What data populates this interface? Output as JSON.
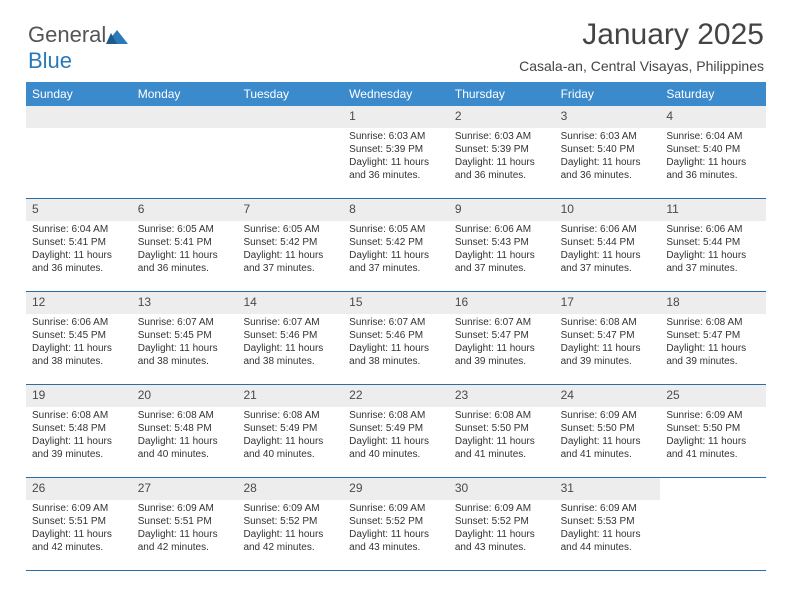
{
  "brand": {
    "text_general": "General",
    "text_blue": "Blue",
    "blue": "#2a79b8",
    "gray": "#555555"
  },
  "title": "January 2025",
  "subtitle": "Casala-an, Central Visayas, Philippines",
  "colors": {
    "header_bg": "#3b8acb",
    "header_text": "#ffffff",
    "daynum_bg": "#ededed",
    "daynum_text": "#4a4a4a",
    "week_border": "#2a6ea8",
    "body_text": "#333333",
    "background": "#ffffff"
  },
  "day_headers": [
    "Sunday",
    "Monday",
    "Tuesday",
    "Wednesday",
    "Thursday",
    "Friday",
    "Saturday"
  ],
  "weeks": [
    [
      {
        "day": "",
        "sunrise": "",
        "sunset": "",
        "daylight": ""
      },
      {
        "day": "",
        "sunrise": "",
        "sunset": "",
        "daylight": ""
      },
      {
        "day": "",
        "sunrise": "",
        "sunset": "",
        "daylight": ""
      },
      {
        "day": "1",
        "sunrise": "Sunrise: 6:03 AM",
        "sunset": "Sunset: 5:39 PM",
        "daylight": "Daylight: 11 hours and 36 minutes."
      },
      {
        "day": "2",
        "sunrise": "Sunrise: 6:03 AM",
        "sunset": "Sunset: 5:39 PM",
        "daylight": "Daylight: 11 hours and 36 minutes."
      },
      {
        "day": "3",
        "sunrise": "Sunrise: 6:03 AM",
        "sunset": "Sunset: 5:40 PM",
        "daylight": "Daylight: 11 hours and 36 minutes."
      },
      {
        "day": "4",
        "sunrise": "Sunrise: 6:04 AM",
        "sunset": "Sunset: 5:40 PM",
        "daylight": "Daylight: 11 hours and 36 minutes."
      }
    ],
    [
      {
        "day": "5",
        "sunrise": "Sunrise: 6:04 AM",
        "sunset": "Sunset: 5:41 PM",
        "daylight": "Daylight: 11 hours and 36 minutes."
      },
      {
        "day": "6",
        "sunrise": "Sunrise: 6:05 AM",
        "sunset": "Sunset: 5:41 PM",
        "daylight": "Daylight: 11 hours and 36 minutes."
      },
      {
        "day": "7",
        "sunrise": "Sunrise: 6:05 AM",
        "sunset": "Sunset: 5:42 PM",
        "daylight": "Daylight: 11 hours and 37 minutes."
      },
      {
        "day": "8",
        "sunrise": "Sunrise: 6:05 AM",
        "sunset": "Sunset: 5:42 PM",
        "daylight": "Daylight: 11 hours and 37 minutes."
      },
      {
        "day": "9",
        "sunrise": "Sunrise: 6:06 AM",
        "sunset": "Sunset: 5:43 PM",
        "daylight": "Daylight: 11 hours and 37 minutes."
      },
      {
        "day": "10",
        "sunrise": "Sunrise: 6:06 AM",
        "sunset": "Sunset: 5:44 PM",
        "daylight": "Daylight: 11 hours and 37 minutes."
      },
      {
        "day": "11",
        "sunrise": "Sunrise: 6:06 AM",
        "sunset": "Sunset: 5:44 PM",
        "daylight": "Daylight: 11 hours and 37 minutes."
      }
    ],
    [
      {
        "day": "12",
        "sunrise": "Sunrise: 6:06 AM",
        "sunset": "Sunset: 5:45 PM",
        "daylight": "Daylight: 11 hours and 38 minutes."
      },
      {
        "day": "13",
        "sunrise": "Sunrise: 6:07 AM",
        "sunset": "Sunset: 5:45 PM",
        "daylight": "Daylight: 11 hours and 38 minutes."
      },
      {
        "day": "14",
        "sunrise": "Sunrise: 6:07 AM",
        "sunset": "Sunset: 5:46 PM",
        "daylight": "Daylight: 11 hours and 38 minutes."
      },
      {
        "day": "15",
        "sunrise": "Sunrise: 6:07 AM",
        "sunset": "Sunset: 5:46 PM",
        "daylight": "Daylight: 11 hours and 38 minutes."
      },
      {
        "day": "16",
        "sunrise": "Sunrise: 6:07 AM",
        "sunset": "Sunset: 5:47 PM",
        "daylight": "Daylight: 11 hours and 39 minutes."
      },
      {
        "day": "17",
        "sunrise": "Sunrise: 6:08 AM",
        "sunset": "Sunset: 5:47 PM",
        "daylight": "Daylight: 11 hours and 39 minutes."
      },
      {
        "day": "18",
        "sunrise": "Sunrise: 6:08 AM",
        "sunset": "Sunset: 5:47 PM",
        "daylight": "Daylight: 11 hours and 39 minutes."
      }
    ],
    [
      {
        "day": "19",
        "sunrise": "Sunrise: 6:08 AM",
        "sunset": "Sunset: 5:48 PM",
        "daylight": "Daylight: 11 hours and 39 minutes."
      },
      {
        "day": "20",
        "sunrise": "Sunrise: 6:08 AM",
        "sunset": "Sunset: 5:48 PM",
        "daylight": "Daylight: 11 hours and 40 minutes."
      },
      {
        "day": "21",
        "sunrise": "Sunrise: 6:08 AM",
        "sunset": "Sunset: 5:49 PM",
        "daylight": "Daylight: 11 hours and 40 minutes."
      },
      {
        "day": "22",
        "sunrise": "Sunrise: 6:08 AM",
        "sunset": "Sunset: 5:49 PM",
        "daylight": "Daylight: 11 hours and 40 minutes."
      },
      {
        "day": "23",
        "sunrise": "Sunrise: 6:08 AM",
        "sunset": "Sunset: 5:50 PM",
        "daylight": "Daylight: 11 hours and 41 minutes."
      },
      {
        "day": "24",
        "sunrise": "Sunrise: 6:09 AM",
        "sunset": "Sunset: 5:50 PM",
        "daylight": "Daylight: 11 hours and 41 minutes."
      },
      {
        "day": "25",
        "sunrise": "Sunrise: 6:09 AM",
        "sunset": "Sunset: 5:50 PM",
        "daylight": "Daylight: 11 hours and 41 minutes."
      }
    ],
    [
      {
        "day": "26",
        "sunrise": "Sunrise: 6:09 AM",
        "sunset": "Sunset: 5:51 PM",
        "daylight": "Daylight: 11 hours and 42 minutes."
      },
      {
        "day": "27",
        "sunrise": "Sunrise: 6:09 AM",
        "sunset": "Sunset: 5:51 PM",
        "daylight": "Daylight: 11 hours and 42 minutes."
      },
      {
        "day": "28",
        "sunrise": "Sunrise: 6:09 AM",
        "sunset": "Sunset: 5:52 PM",
        "daylight": "Daylight: 11 hours and 42 minutes."
      },
      {
        "day": "29",
        "sunrise": "Sunrise: 6:09 AM",
        "sunset": "Sunset: 5:52 PM",
        "daylight": "Daylight: 11 hours and 43 minutes."
      },
      {
        "day": "30",
        "sunrise": "Sunrise: 6:09 AM",
        "sunset": "Sunset: 5:52 PM",
        "daylight": "Daylight: 11 hours and 43 minutes."
      },
      {
        "day": "31",
        "sunrise": "Sunrise: 6:09 AM",
        "sunset": "Sunset: 5:53 PM",
        "daylight": "Daylight: 11 hours and 44 minutes."
      },
      {
        "day": "",
        "sunrise": "",
        "sunset": "",
        "daylight": ""
      }
    ]
  ]
}
